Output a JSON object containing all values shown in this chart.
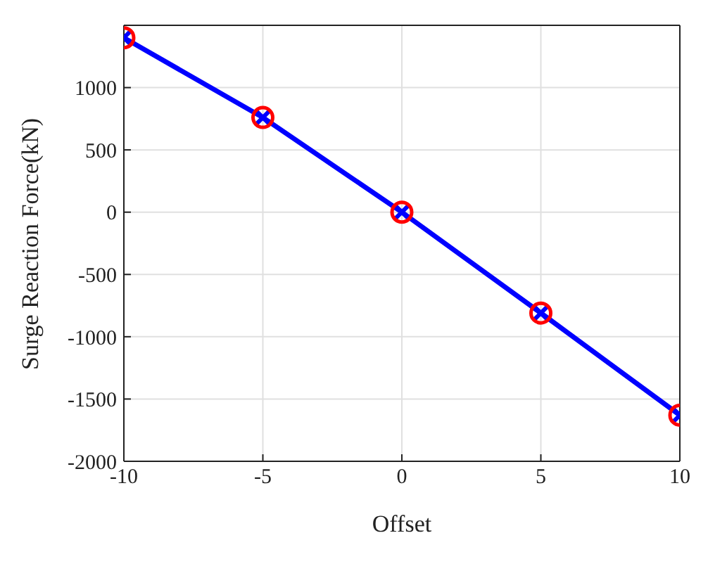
{
  "chart_data": {
    "type": "line",
    "xlabel": "Offset",
    "ylabel": "Surge Reaction Force(kN)",
    "x": [
      -10,
      -5,
      0,
      5,
      10
    ],
    "series": [
      {
        "color": "#0000ff",
        "marker": "cross",
        "line_style": "solid",
        "values": [
          1400,
          760,
          0,
          -810,
          -1630
        ]
      },
      {
        "type": "scatter",
        "color": "#ff0000",
        "marker": "circle",
        "values": [
          1400,
          760,
          0,
          -810,
          -1630
        ]
      }
    ],
    "xlim": [
      -10,
      10
    ],
    "xticks": [
      -10,
      -5,
      0,
      5,
      10
    ],
    "ylim": [
      -2000,
      1500
    ],
    "yticks": [
      -2000,
      -1500,
      -1000,
      -500,
      0,
      500,
      1000
    ],
    "grid": true,
    "legend": false
  }
}
